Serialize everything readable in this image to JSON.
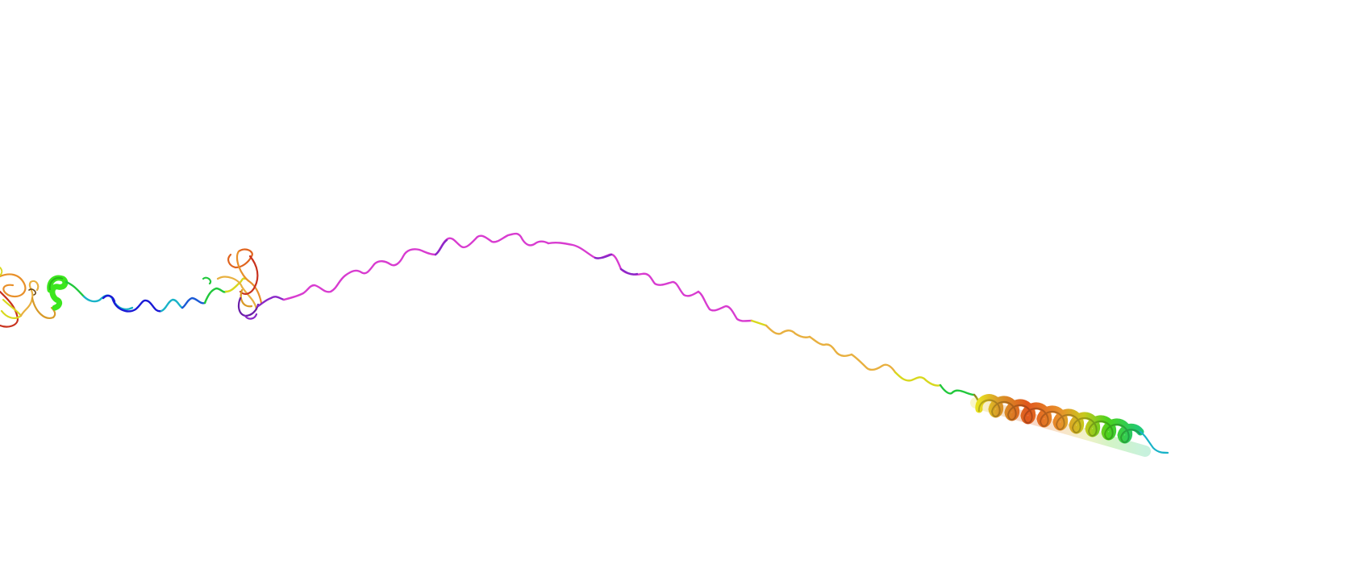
{
  "viewer": {
    "background": "#ffffff",
    "representation": "cartoon",
    "color_scheme": "rainbow",
    "segment_colors": {
      "blue": "#1a1ad6",
      "cyan": "#19b3c8",
      "green": "#22c83c",
      "bright_green": "#3ce61e",
      "yellow": "#d8d81e",
      "yellow_orange": "#e8b040",
      "orange": "#e8902a",
      "orange_red": "#e0641e",
      "red": "#c8321e",
      "magenta": "#d83cd0",
      "purple": "#8a28c8",
      "violet": "#6a1ea8"
    }
  }
}
